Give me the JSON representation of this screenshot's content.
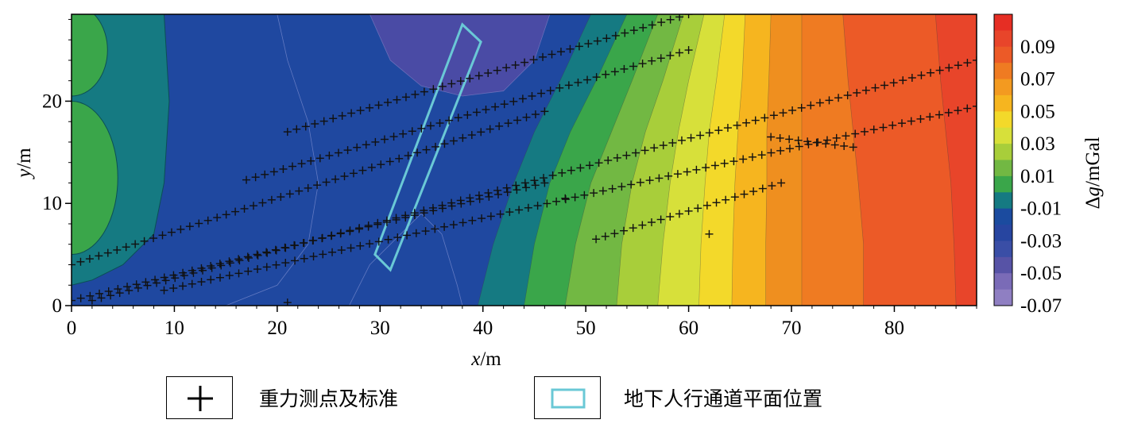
{
  "chart_data": {
    "type": "heatmap",
    "subtype": "filled-contour",
    "xlabel_var": "x",
    "xlabel_unit": "/m",
    "ylabel_var": "y",
    "ylabel_unit": "/m",
    "xlim": [
      0,
      88
    ],
    "ylim": [
      0,
      28.5
    ],
    "x_ticks": [
      0,
      10,
      20,
      30,
      40,
      50,
      60,
      70,
      80
    ],
    "y_ticks": [
      0,
      10,
      20
    ],
    "colorbar": {
      "label_delta": "Δ",
      "label_var": "g",
      "label_unit": "/mGal",
      "levels": [
        {
          "value": 0.1,
          "color": "#e62e24",
          "label": ""
        },
        {
          "value": 0.09,
          "color": "#e8452a",
          "label": "0.09"
        },
        {
          "value": 0.08,
          "color": "#ec5a27",
          "label": ""
        },
        {
          "value": 0.07,
          "color": "#ef7b22",
          "label": "0.07"
        },
        {
          "value": 0.06,
          "color": "#f39a20",
          "label": ""
        },
        {
          "value": 0.05,
          "color": "#f6b51f",
          "label": "0.05"
        },
        {
          "value": 0.04,
          "color": "#f3d92a",
          "label": ""
        },
        {
          "value": 0.03,
          "color": "#d7e03a",
          "label": "0.03"
        },
        {
          "value": 0.02,
          "color": "#a8ce3a",
          "label": ""
        },
        {
          "value": 0.01,
          "color": "#72b843",
          "label": "0.01"
        },
        {
          "value": 0.0,
          "color": "#3aa64a",
          "label": ""
        },
        {
          "value": -0.01,
          "color": "#157a82",
          "label": "-0.01"
        },
        {
          "value": -0.02,
          "color": "#1b4b9f",
          "label": ""
        },
        {
          "value": -0.03,
          "color": "#2745a0",
          "label": "-0.03"
        },
        {
          "value": -0.04,
          "color": "#3a4ea6",
          "label": ""
        },
        {
          "value": -0.05,
          "color": "#5753a6",
          "label": "-0.05"
        },
        {
          "value": -0.06,
          "color": "#7a6bb7",
          "label": ""
        },
        {
          "value": -0.07,
          "color": "#8f7fc2",
          "label": "-0.07"
        }
      ]
    },
    "contour_bands": [
      {
        "value": -0.06,
        "color": "#6a5aae",
        "boundary": [
          [
            34,
            28.5
          ],
          [
            34.5,
            26.5
          ],
          [
            36,
            25
          ],
          [
            38,
            24.2
          ],
          [
            40,
            24.5
          ],
          [
            42,
            26
          ],
          [
            43,
            28.5
          ]
        ]
      },
      {
        "value": -0.05,
        "color": "#4a4ba5",
        "boundary": [
          [
            29,
            28.5
          ],
          [
            31,
            24
          ],
          [
            34,
            21.5
          ],
          [
            38,
            20.5
          ],
          [
            42,
            21
          ],
          [
            45,
            24
          ],
          [
            46.5,
            28.5
          ]
        ]
      },
      {
        "value": -0.02,
        "color": "#1f48a0",
        "boundary": [
          [
            9,
            28.5
          ],
          [
            9.5,
            20
          ],
          [
            9,
            12
          ],
          [
            8,
            7
          ],
          [
            5,
            4
          ],
          [
            2,
            2.5
          ],
          [
            0,
            2
          ]
        ]
      },
      {
        "value": -0.01,
        "color": "#157a82",
        "boundary": [
          [
            50.5,
            28.5
          ],
          [
            47.5,
            22
          ],
          [
            45,
            17
          ],
          [
            43,
            12
          ],
          [
            41,
            6
          ],
          [
            39.5,
            0
          ]
        ]
      },
      {
        "value": 0.0,
        "color": "#3aa64a",
        "boundary": [
          [
            54,
            28.5
          ],
          [
            51,
            22
          ],
          [
            48.5,
            17
          ],
          [
            46.5,
            12
          ],
          [
            45,
            6
          ],
          [
            44,
            0
          ]
        ]
      },
      {
        "value": 0.01,
        "color": "#72b843",
        "boundary": [
          [
            57,
            28.5
          ],
          [
            54.5,
            22
          ],
          [
            52.5,
            17
          ],
          [
            50.5,
            12
          ],
          [
            49,
            6
          ],
          [
            48,
            0
          ]
        ]
      },
      {
        "value": 0.02,
        "color": "#a8ce3a",
        "boundary": [
          [
            59.5,
            28.5
          ],
          [
            57.5,
            22
          ],
          [
            55.8,
            17
          ],
          [
            54.5,
            12
          ],
          [
            53.5,
            6
          ],
          [
            53,
            0
          ]
        ]
      },
      {
        "value": 0.03,
        "color": "#d7e03a",
        "boundary": [
          [
            61.5,
            28.5
          ],
          [
            60,
            22
          ],
          [
            59,
            17
          ],
          [
            58.2,
            12
          ],
          [
            57.5,
            6
          ],
          [
            57,
            0
          ]
        ]
      },
      {
        "value": 0.04,
        "color": "#f3d92a",
        "boundary": [
          [
            63.5,
            28.5
          ],
          [
            62.7,
            22
          ],
          [
            62,
            17
          ],
          [
            61.6,
            12
          ],
          [
            61.2,
            6
          ],
          [
            61,
            0
          ]
        ]
      },
      {
        "value": 0.05,
        "color": "#f6b51f",
        "boundary": [
          [
            65.5,
            28.5
          ],
          [
            65.2,
            22
          ],
          [
            64.8,
            17
          ],
          [
            64.5,
            12
          ],
          [
            64.3,
            6
          ],
          [
            64.2,
            0
          ]
        ]
      },
      {
        "value": 0.06,
        "color": "#ef8f1f",
        "boundary": [
          [
            68,
            28.5
          ],
          [
            67.8,
            22
          ],
          [
            67.6,
            17
          ],
          [
            67.6,
            12
          ],
          [
            67.5,
            6
          ],
          [
            67.5,
            0
          ]
        ]
      },
      {
        "value": 0.07,
        "color": "#ef7b22",
        "boundary": [
          [
            71,
            28.5
          ],
          [
            71,
            22
          ],
          [
            71,
            17
          ],
          [
            71,
            12
          ],
          [
            71,
            6
          ],
          [
            71,
            0
          ]
        ]
      },
      {
        "value": 0.08,
        "color": "#ec5a27",
        "boundary": [
          [
            75,
            28.5
          ],
          [
            75.5,
            22
          ],
          [
            76,
            17
          ],
          [
            76.5,
            12
          ],
          [
            77,
            6
          ],
          [
            77,
            0
          ]
        ]
      },
      {
        "value": 0.09,
        "color": "#e8452a",
        "boundary": [
          [
            84,
            28.5
          ],
          [
            84.5,
            22
          ],
          [
            85,
            17
          ],
          [
            85.5,
            12
          ],
          [
            85.8,
            6
          ],
          [
            86,
            0
          ]
        ]
      }
    ],
    "local_highs": [
      {
        "value": 0.0,
        "color": "#3aa64a",
        "center": [
          0,
          25
        ],
        "radii": [
          3.5,
          4.5
        ]
      },
      {
        "value": 0.0,
        "color": "#3aa64a",
        "center": [
          0,
          12.5
        ],
        "radii": [
          4.5,
          7.5
        ]
      }
    ],
    "tunnel_outline": [
      [
        38,
        27.5
      ],
      [
        39.8,
        25.8
      ],
      [
        31,
        3.5
      ],
      [
        29.5,
        5
      ]
    ],
    "survey_lines": [
      {
        "start": [
          21,
          17
        ],
        "end": [
          60,
          28.5
        ]
      },
      {
        "start": [
          17,
          12.3
        ],
        "end": [
          60,
          25
        ]
      },
      {
        "start": [
          0,
          4
        ],
        "end": [
          46,
          19
        ]
      },
      {
        "start": [
          0,
          0.5
        ],
        "end": [
          46,
          12
        ]
      },
      {
        "start": [
          2,
          0.5
        ],
        "end": [
          88,
          24
        ]
      },
      {
        "start": [
          9,
          1.5
        ],
        "end": [
          88,
          19.5
        ]
      },
      {
        "start": [
          51,
          6.5
        ],
        "end": [
          69,
          12
        ]
      },
      {
        "start": [
          68,
          16.5
        ],
        "end": [
          76,
          15.5
        ]
      }
    ],
    "extra_points": [
      [
        48,
        10.5
      ],
      [
        21,
        0.3
      ],
      [
        62,
        7
      ]
    ]
  },
  "legend": {
    "items": [
      {
        "symbol": "+",
        "label": "重力测点及标准"
      },
      {
        "symbol": "rect",
        "label": "地下人行通道平面位置"
      }
    ]
  },
  "colors": {
    "tunnel": "#6ac8d6",
    "axis": "#000000"
  }
}
